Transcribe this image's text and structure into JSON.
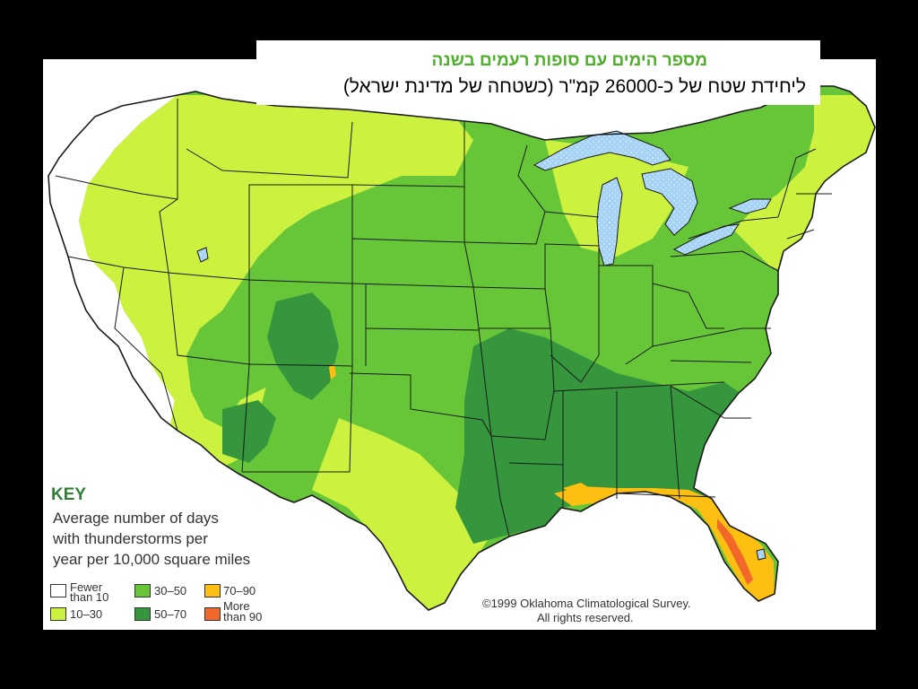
{
  "title": {
    "line1": "מספר הימים עם סופות רעמים בשנה",
    "line2": "ליחידת שטח של כ-26000 קמ\"ר (כשטחה של מדינת ישראל)"
  },
  "key": {
    "heading": "KEY",
    "description_lines": [
      "Average number of days",
      "with thunderstorms per",
      "year per 10,000 square miles"
    ],
    "entries": [
      {
        "label_lines": [
          "Fewer",
          "than 10"
        ],
        "color": "#ffffff"
      },
      {
        "label_lines": [
          "10–30"
        ],
        "color": "#ccf23f"
      },
      {
        "label_lines": [
          "30–50"
        ],
        "color": "#66c638"
      },
      {
        "label_lines": [
          "50–70"
        ],
        "color": "#35963d"
      },
      {
        "label_lines": [
          "70–90"
        ],
        "color": "#fdbf12"
      },
      {
        "label_lines": [
          "More",
          "than 90"
        ],
        "color": "#f2672a"
      }
    ]
  },
  "copyright": {
    "line1": "©1999 Oklahoma Climatological Survey.",
    "line2": "All rights reserved."
  },
  "colors": {
    "background": "#000000",
    "lakes": "#a5d3f5",
    "boundaries": "#1a1a1a",
    "title_green": "#4fae2a",
    "key_green": "#2f7f33"
  }
}
